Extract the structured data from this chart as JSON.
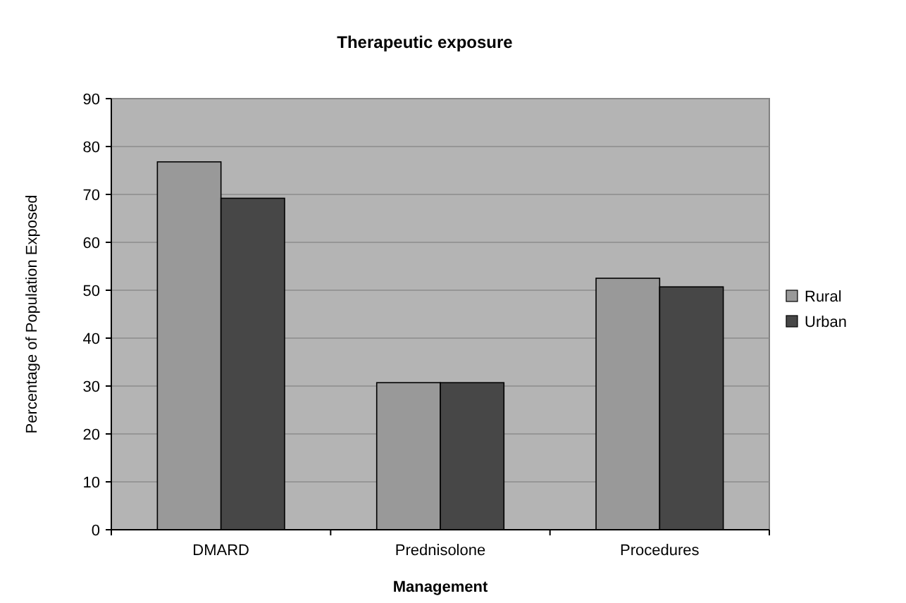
{
  "chart_data": {
    "type": "bar",
    "title": "Therapeutic exposure",
    "xlabel": "Management",
    "ylabel": "Percentage of Population Exposed",
    "categories": [
      "DMARD",
      "Prednisolone",
      "Procedures"
    ],
    "series": [
      {
        "name": "Rural",
        "color": "#999999",
        "values": [
          76.8,
          30.7,
          52.5
        ]
      },
      {
        "name": "Urban",
        "color": "#474747",
        "values": [
          69.2,
          30.7,
          50.7
        ]
      }
    ],
    "ylim": [
      0,
      90
    ],
    "yticks": [
      0,
      10,
      20,
      30,
      40,
      50,
      60,
      70,
      80,
      90
    ],
    "grid": "y",
    "legend": "right"
  }
}
